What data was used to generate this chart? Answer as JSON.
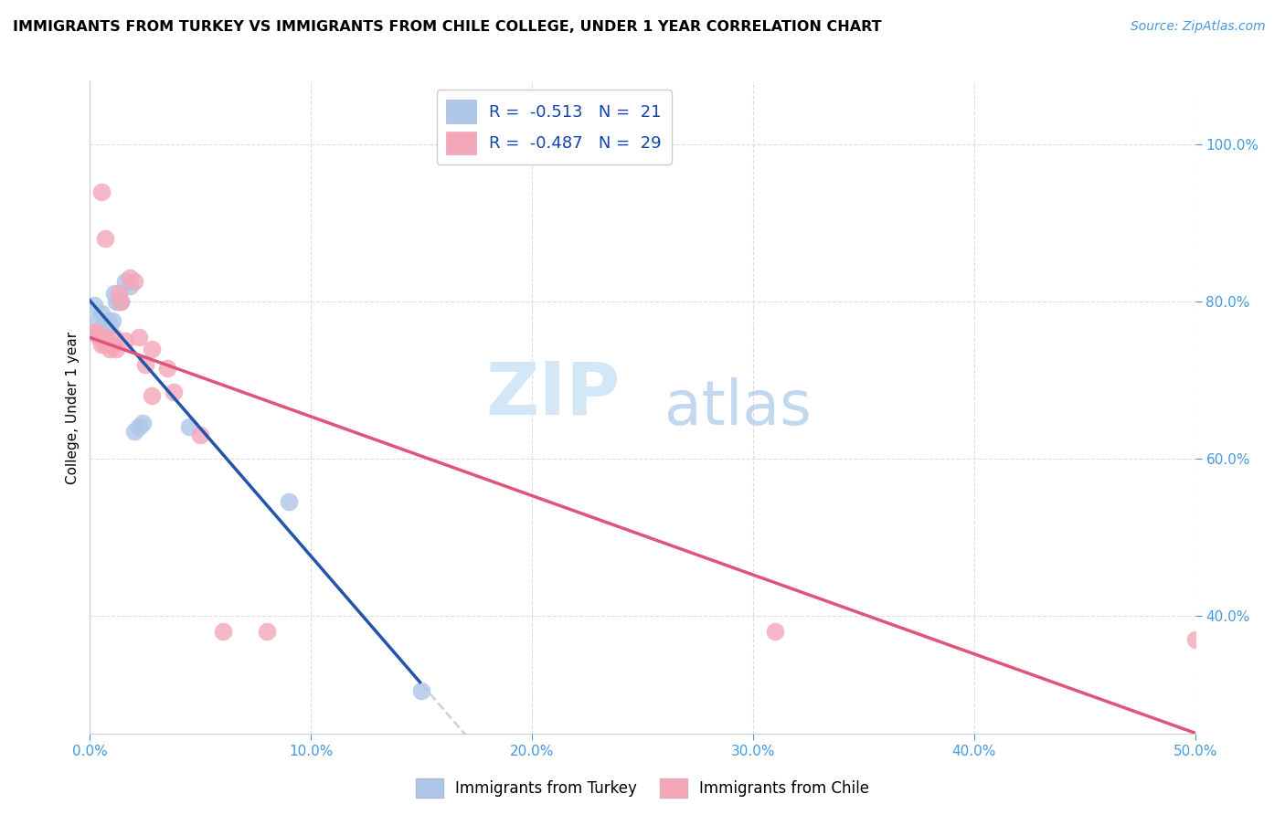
{
  "title": "IMMIGRANTS FROM TURKEY VS IMMIGRANTS FROM CHILE COLLEGE, UNDER 1 YEAR CORRELATION CHART",
  "source": "Source: ZipAtlas.com",
  "ylabel": "College, Under 1 year",
  "xlim": [
    0.0,
    0.5
  ],
  "ylim": [
    0.25,
    1.08
  ],
  "xtick_values": [
    0.0,
    0.1,
    0.2,
    0.3,
    0.4,
    0.5
  ],
  "xtick_labels": [
    "0.0%",
    "10.0%",
    "20.0%",
    "30.0%",
    "40.0%",
    "50.0%"
  ],
  "ytick_values": [
    0.4,
    0.6,
    0.8,
    1.0
  ],
  "ytick_labels": [
    "40.0%",
    "60.0%",
    "80.0%",
    "100.0%"
  ],
  "turkey_R": "-0.513",
  "turkey_N": "21",
  "chile_R": "-0.487",
  "chile_N": "29",
  "turkey_color": "#aec6e8",
  "chile_color": "#f4a7b9",
  "turkey_line_color": "#2255aa",
  "chile_line_color": "#e05577",
  "dash_color": "#bbbbcc",
  "watermark_zip": "ZIP",
  "watermark_atlas": "atlas",
  "turkey_points": [
    [
      0.002,
      0.795
    ],
    [
      0.003,
      0.775
    ],
    [
      0.004,
      0.76
    ],
    [
      0.005,
      0.785
    ],
    [
      0.006,
      0.77
    ],
    [
      0.007,
      0.76
    ],
    [
      0.008,
      0.775
    ],
    [
      0.009,
      0.77
    ],
    [
      0.01,
      0.775
    ],
    [
      0.011,
      0.81
    ],
    [
      0.012,
      0.8
    ],
    [
      0.013,
      0.8
    ],
    [
      0.014,
      0.8
    ],
    [
      0.016,
      0.825
    ],
    [
      0.018,
      0.82
    ],
    [
      0.02,
      0.635
    ],
    [
      0.022,
      0.64
    ],
    [
      0.024,
      0.645
    ],
    [
      0.045,
      0.64
    ],
    [
      0.09,
      0.545
    ],
    [
      0.15,
      0.305
    ]
  ],
  "chile_points": [
    [
      0.002,
      0.76
    ],
    [
      0.003,
      0.76
    ],
    [
      0.004,
      0.755
    ],
    [
      0.005,
      0.745
    ],
    [
      0.006,
      0.755
    ],
    [
      0.007,
      0.745
    ],
    [
      0.008,
      0.745
    ],
    [
      0.009,
      0.74
    ],
    [
      0.01,
      0.745
    ],
    [
      0.011,
      0.755
    ],
    [
      0.012,
      0.74
    ],
    [
      0.013,
      0.81
    ],
    [
      0.014,
      0.8
    ],
    [
      0.016,
      0.75
    ],
    [
      0.018,
      0.83
    ],
    [
      0.02,
      0.825
    ],
    [
      0.022,
      0.755
    ],
    [
      0.025,
      0.72
    ],
    [
      0.028,
      0.74
    ],
    [
      0.028,
      0.68
    ],
    [
      0.035,
      0.715
    ],
    [
      0.038,
      0.685
    ],
    [
      0.05,
      0.63
    ],
    [
      0.06,
      0.38
    ],
    [
      0.08,
      0.38
    ],
    [
      0.005,
      0.94
    ],
    [
      0.007,
      0.88
    ],
    [
      0.31,
      0.38
    ],
    [
      0.5,
      0.37
    ]
  ]
}
